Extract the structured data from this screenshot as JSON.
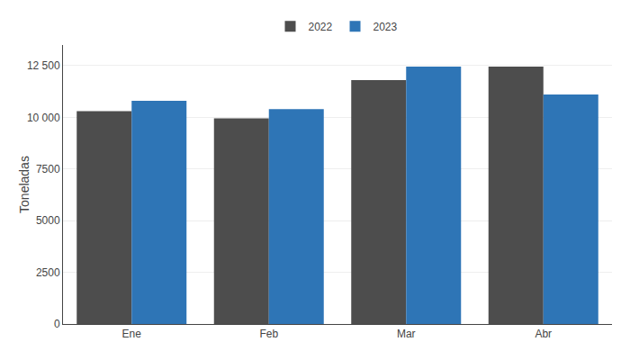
{
  "chart_data": {
    "type": "bar",
    "ylabel": "Toneladas",
    "categories": [
      "Ene",
      "Feb",
      "Mar",
      "Abr"
    ],
    "series": [
      {
        "name": "2022",
        "color": "#4d4d4d",
        "values": [
          10300,
          9950,
          11800,
          12450
        ]
      },
      {
        "name": "2023",
        "color": "#2e75b6",
        "values": [
          10800,
          10400,
          12450,
          11100
        ]
      }
    ],
    "ylim": [
      0,
      13500
    ],
    "yticks": [
      0,
      2500,
      5000,
      7500,
      {
        "value": 10000,
        "label": "10 000"
      },
      {
        "value": 12500,
        "label": "12 500"
      }
    ],
    "grid": true,
    "legend": "top"
  }
}
